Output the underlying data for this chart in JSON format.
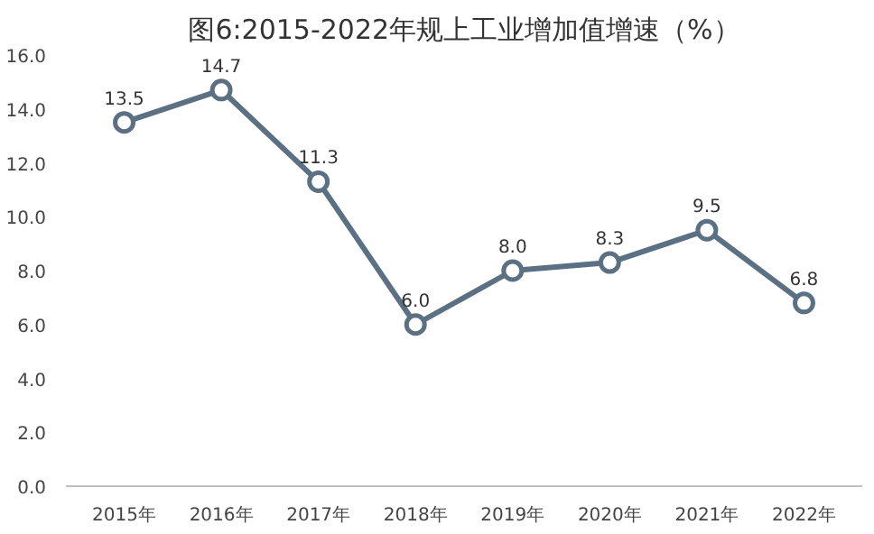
{
  "chart_data": {
    "type": "line",
    "title": "图6:2015-2022年规上工业增加值增速（%）",
    "categories": [
      "2015年",
      "2016年",
      "2017年",
      "2018年",
      "2019年",
      "2020年",
      "2021年",
      "2022年"
    ],
    "series": [
      {
        "color": "#5b7082",
        "values": [
          13.5,
          14.7,
          11.3,
          6.0,
          8.0,
          8.3,
          9.5,
          6.8
        ]
      }
    ],
    "value_labels": [
      "13.5",
      "14.7",
      "11.3",
      "6.0",
      "8.0",
      "8.3",
      "9.5",
      "6.8"
    ],
    "ylim": [
      0,
      16
    ],
    "yticks": [
      {
        "value": 0,
        "label": "0.0"
      },
      {
        "value": 2,
        "label": "2.0"
      },
      {
        "value": 4,
        "label": "4.0"
      },
      {
        "value": 6,
        "label": "6.0"
      },
      {
        "value": 8,
        "label": "8.0"
      },
      {
        "value": 10,
        "label": "10.0"
      },
      {
        "value": 12,
        "label": "12.0"
      },
      {
        "value": 14,
        "label": "14.0"
      },
      {
        "value": 16,
        "label": "16.0"
      }
    ],
    "marker": "circle",
    "line_style": "solid",
    "grid": false
  }
}
